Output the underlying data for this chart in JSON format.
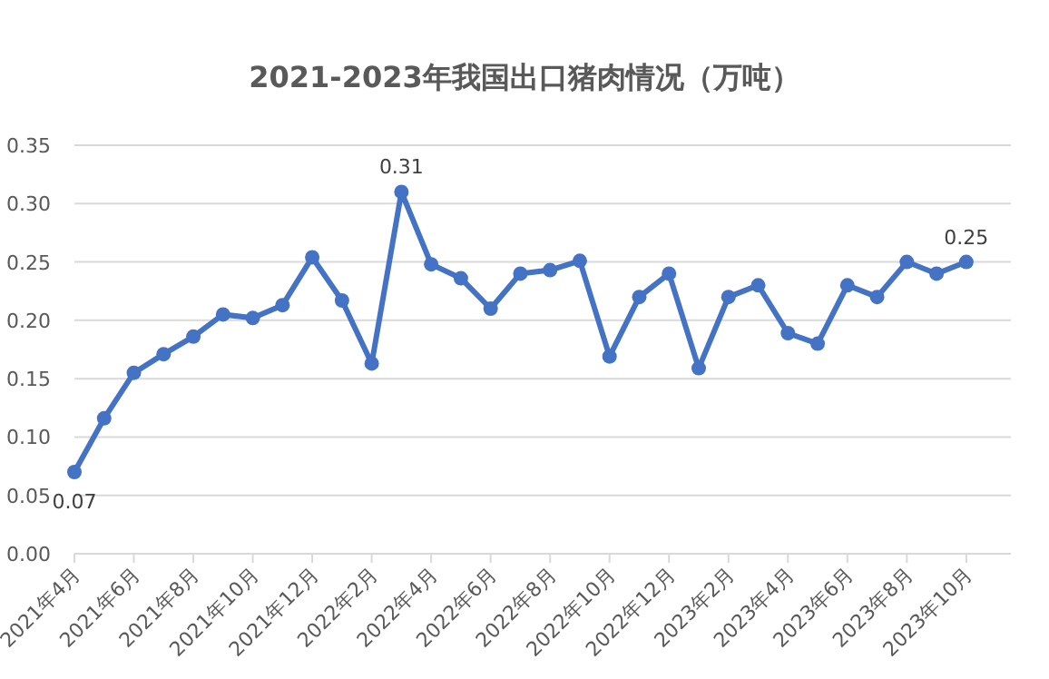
{
  "chart_data": {
    "type": "line",
    "title": "2021-2023年我国出口猪肉情况（万吨）",
    "categories": [
      "2021年4月",
      null,
      "2021年6月",
      null,
      "2021年8月",
      null,
      "2021年10月",
      null,
      "2021年12月",
      null,
      "2022年2月",
      null,
      "2022年4月",
      null,
      "2022年6月",
      null,
      "2022年8月",
      null,
      "2022年10月",
      null,
      "2022年12月",
      null,
      "2023年2月",
      null,
      "2023年4月",
      null,
      "2023年6月",
      null,
      "2023年8月",
      null,
      "2023年10月"
    ],
    "series": [
      {
        "color": "#4472c4",
        "values": [
          0.07,
          0.116,
          0.155,
          0.171,
          0.186,
          0.205,
          0.202,
          0.213,
          0.254,
          0.217,
          0.163,
          0.31,
          0.248,
          0.236,
          0.21,
          0.24,
          0.243,
          0.251,
          0.169,
          0.22,
          0.24,
          0.159,
          0.22,
          0.23,
          0.189,
          0.18,
          0.23,
          0.22,
          0.25,
          0.24,
          0.25
        ],
        "value_labels": [
          "0.07",
          null,
          null,
          null,
          null,
          null,
          null,
          null,
          null,
          null,
          null,
          "0.31",
          null,
          null,
          null,
          null,
          null,
          null,
          null,
          null,
          null,
          null,
          null,
          null,
          null,
          null,
          null,
          null,
          null,
          null,
          "0.25"
        ]
      }
    ],
    "ylim": [
      0,
      0.35
    ],
    "yticks": [
      "0.00",
      "0.05",
      "0.10",
      "0.15",
      "0.20",
      "0.25",
      "0.30",
      "0.35"
    ],
    "grid": "y",
    "marker": "circle",
    "line_style": "solid"
  }
}
